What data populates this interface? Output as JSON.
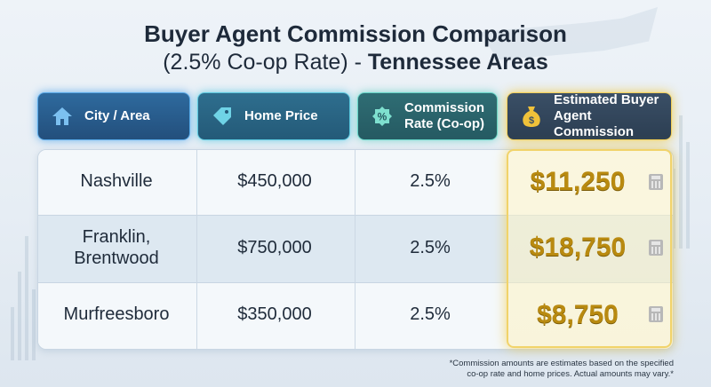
{
  "title": {
    "line1": "Buyer Agent Commission Comparison",
    "line2_prefix": "(2.5% Co-op Rate) - ",
    "line2_bold": "Tennessee Areas"
  },
  "headers": {
    "city": {
      "line1": "City / Area",
      "icon": "house-icon"
    },
    "price": {
      "line1": "Home Price",
      "icon": "price-tag-icon"
    },
    "rate": {
      "line1": "Commission",
      "line2": "Rate (Co-op)",
      "icon": "percent-icon"
    },
    "commission": {
      "line1": "Estimated Buyer",
      "line2": "Agent Commission",
      "icon": "money-bag-icon"
    }
  },
  "rows": [
    {
      "city_line1": "Nashville",
      "city_line2": "",
      "price": "$450,000",
      "rate": "2.5%",
      "commission": "$11,250"
    },
    {
      "city_line1": "Franklin,",
      "city_line2": "Brentwood",
      "price": "$750,000",
      "rate": "2.5%",
      "commission": "$18,750"
    },
    {
      "city_line1": "Murfreesboro",
      "city_line2": "",
      "price": "$350,000",
      "rate": "2.5%",
      "commission": "$8,750"
    }
  ],
  "footnote": {
    "line1": "*Commission amounts are estimates based on the specified",
    "line2": "co-op rate and home prices. Actual amounts may vary.*"
  },
  "colors": {
    "accent_gold": "#b98a10",
    "title_text": "#1e2a3a"
  }
}
